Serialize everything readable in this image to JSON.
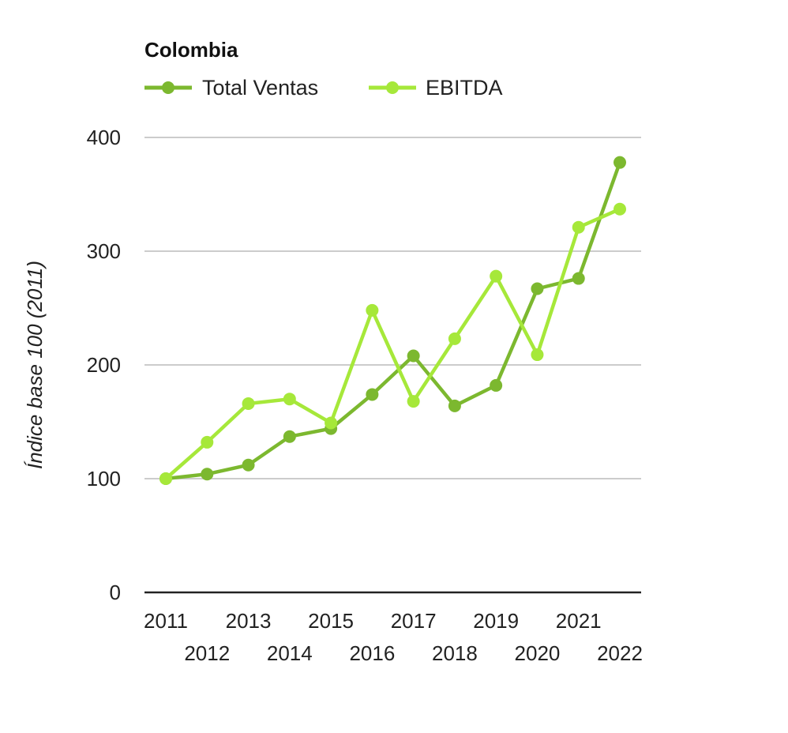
{
  "chart_data": {
    "type": "line",
    "title": "Colombia",
    "ylabel": "Índice base 100 (2011)",
    "xlabel": "",
    "ylim": [
      0,
      400
    ],
    "yticks": [
      0,
      100,
      200,
      300,
      400
    ],
    "categories": [
      "2011",
      "2012",
      "2013",
      "2014",
      "2015",
      "2016",
      "2017",
      "2018",
      "2019",
      "2020",
      "2021",
      "2022"
    ],
    "grid": true,
    "legend_position": "top-left",
    "series": [
      {
        "name": "Total Ventas",
        "color": "#7cb82f",
        "values": [
          100,
          104,
          112,
          137,
          144,
          174,
          208,
          164,
          182,
          267,
          276,
          378
        ]
      },
      {
        "name": "EBITDA",
        "color": "#a6e83a",
        "values": [
          100,
          132,
          166,
          170,
          149,
          248,
          168,
          223,
          278,
          209,
          321,
          337
        ]
      }
    ]
  }
}
